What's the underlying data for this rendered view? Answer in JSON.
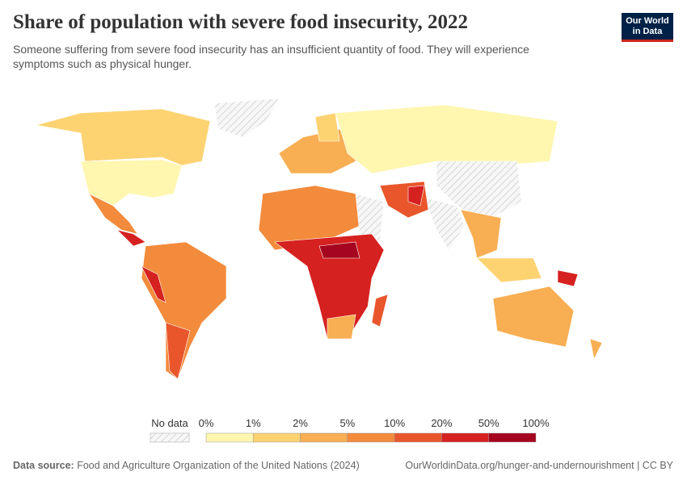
{
  "header": {
    "title": "Share of population with severe food insecurity, 2022",
    "subtitle": "Someone suffering from severe food insecurity has an insufficient quantity of food. They will experience symptoms such as physical hunger.",
    "logo": [
      "Our World",
      "in Data"
    ]
  },
  "legend": {
    "no_data": "No data",
    "labels": [
      "0%",
      "1%",
      "2%",
      "5%",
      "10%",
      "20%",
      "50%",
      "100%"
    ],
    "colors": [
      "#fff6b0",
      "#fdd372",
      "#f8ae52",
      "#f38b3c",
      "#e9562c",
      "#d52120",
      "#a5051f"
    ]
  },
  "footer": {
    "source_label": "Data source:",
    "source": "Food and Agriculture Organization of the United Nations (2024)",
    "link": "OurWorldinData.org/hunger-and-undernourishment | CC BY"
  }
}
